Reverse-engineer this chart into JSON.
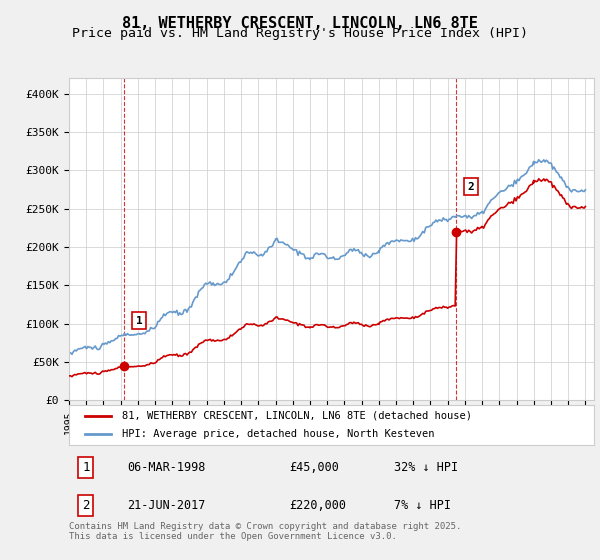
{
  "title": "81, WETHERBY CRESCENT, LINCOLN, LN6 8TE",
  "subtitle": "Price paid vs. HM Land Registry's House Price Index (HPI)",
  "ylim": [
    0,
    420000
  ],
  "xlim_start": 1995.0,
  "xlim_end": 2025.5,
  "yticks": [
    0,
    50000,
    100000,
    150000,
    200000,
    250000,
    300000,
    350000,
    400000
  ],
  "ytick_labels": [
    "£0",
    "£50K",
    "£100K",
    "£150K",
    "£200K",
    "£250K",
    "£300K",
    "£350K",
    "£400K"
  ],
  "xticks": [
    1995,
    1996,
    1997,
    1998,
    1999,
    2000,
    2001,
    2002,
    2003,
    2004,
    2005,
    2006,
    2007,
    2008,
    2009,
    2010,
    2011,
    2012,
    2013,
    2014,
    2015,
    2016,
    2017,
    2018,
    2019,
    2020,
    2021,
    2022,
    2023,
    2024,
    2025
  ],
  "sale1_x": 1998.18,
  "sale1_y": 45000,
  "sale2_x": 2017.47,
  "sale2_y": 220000,
  "sale_color": "#cc0000",
  "hpi_color": "#6699cc",
  "bg_color": "#f0f0f0",
  "plot_bg": "#ffffff",
  "grid_color": "#cccccc",
  "annotation_box_color": "#cc0000",
  "legend_entry1": "81, WETHERBY CRESCENT, LINCOLN, LN6 8TE (detached house)",
  "legend_entry2": "HPI: Average price, detached house, North Kesteven",
  "table_row1": [
    "1",
    "06-MAR-1998",
    "£45,000",
    "32% ↓ HPI"
  ],
  "table_row2": [
    "2",
    "21-JUN-2017",
    "£220,000",
    "7% ↓ HPI"
  ],
  "footer": "Contains HM Land Registry data © Crown copyright and database right 2025.\nThis data is licensed under the Open Government Licence v3.0.",
  "title_fontsize": 11,
  "subtitle_fontsize": 9.5
}
